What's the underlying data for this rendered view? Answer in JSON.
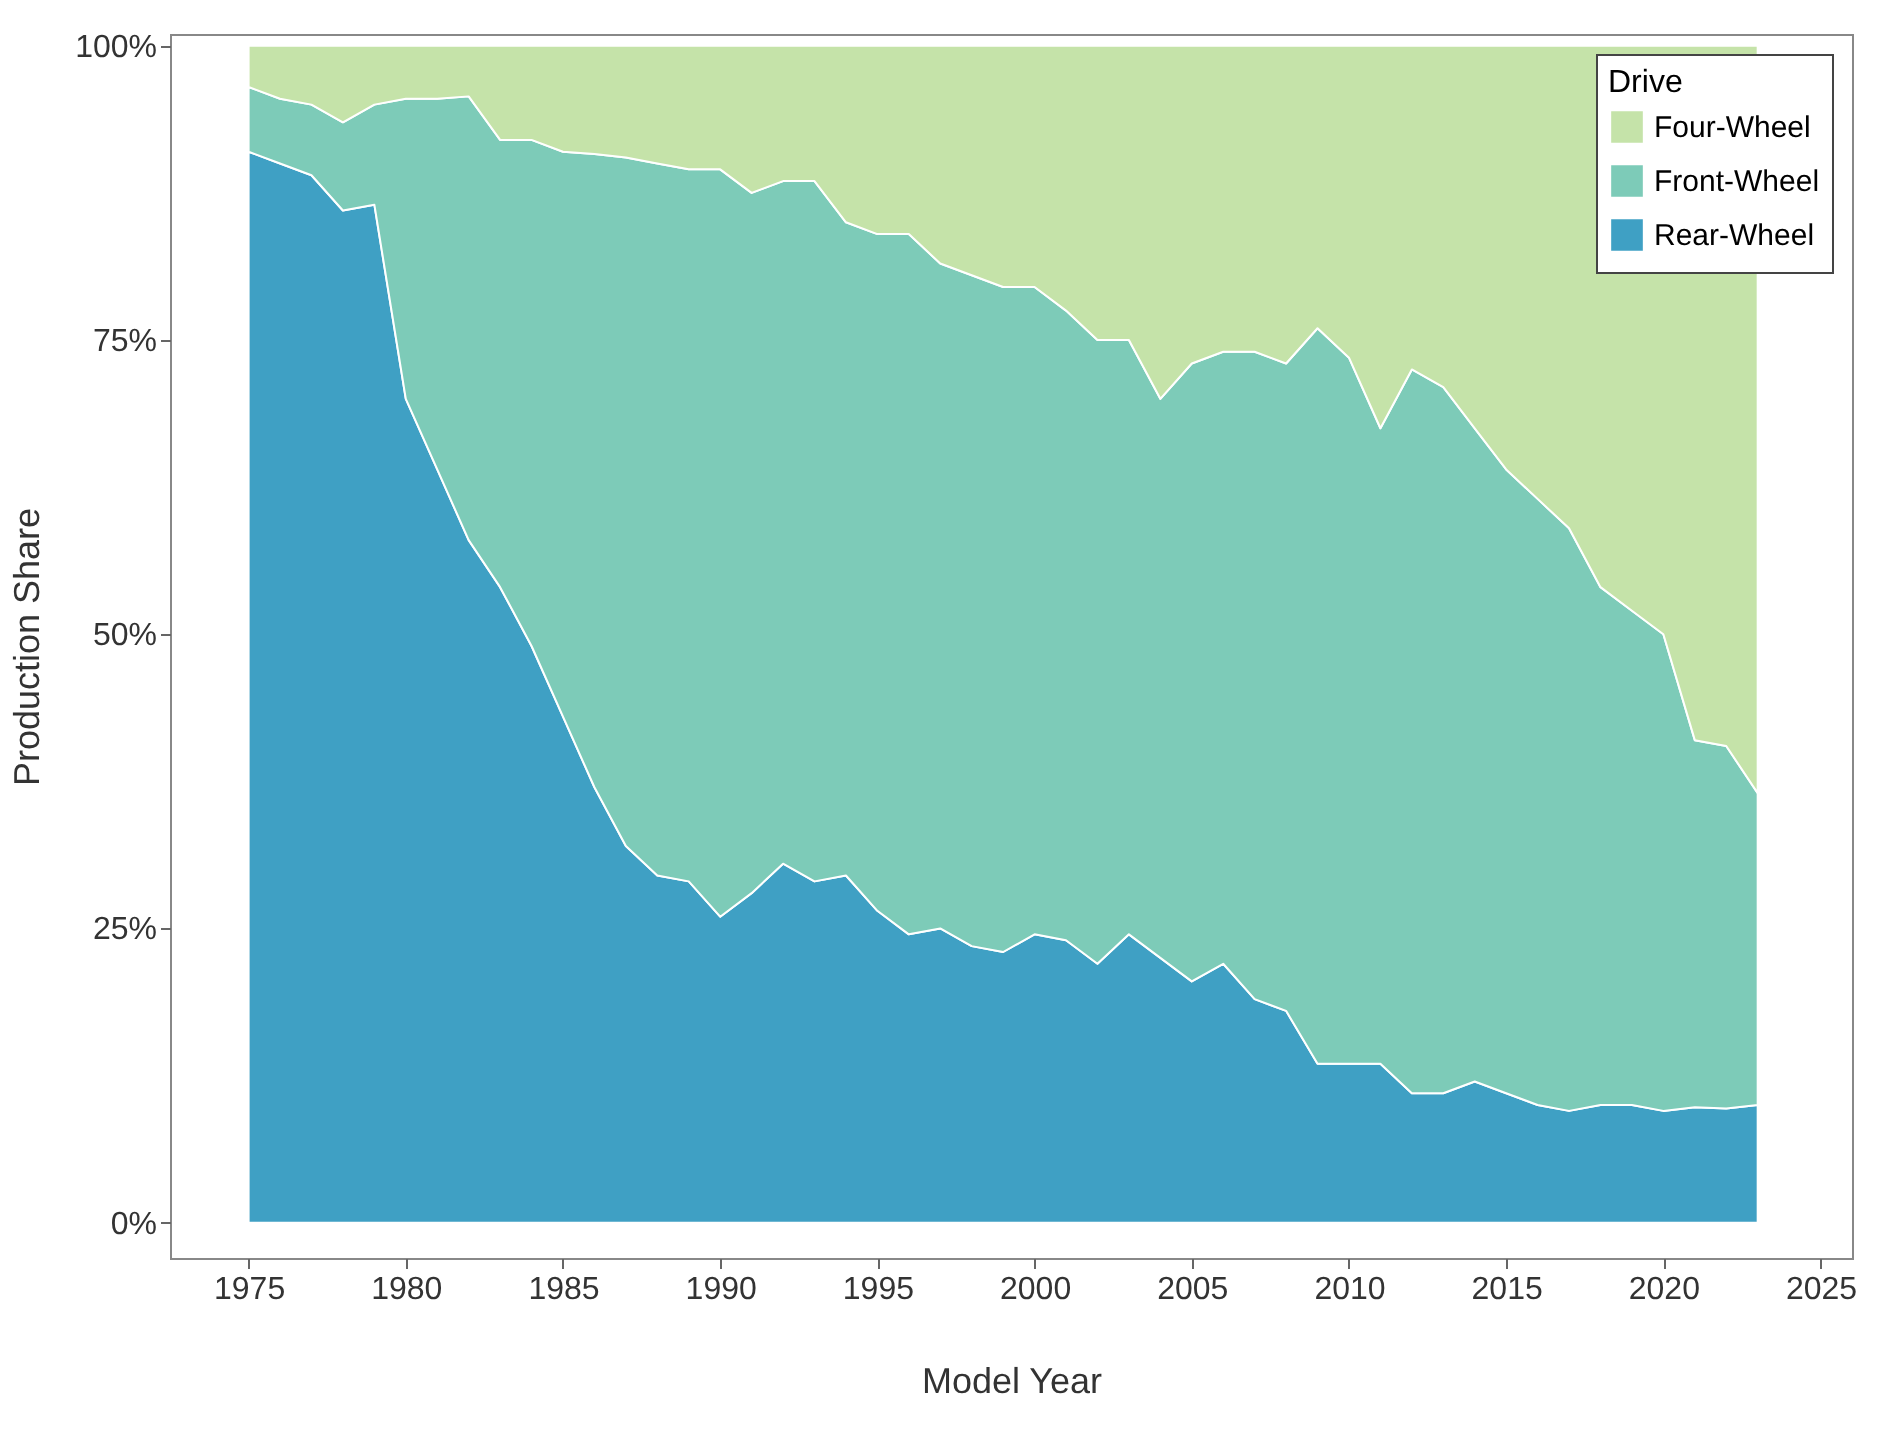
{
  "chart_data": {
    "type": "area",
    "stacked": true,
    "xlabel": "Model Year",
    "ylabel": "Production Share",
    "legend_title": "Drive",
    "legend": "top right",
    "grid": false,
    "x": [
      1975,
      1976,
      1977,
      1978,
      1979,
      1980,
      1981,
      1982,
      1983,
      1984,
      1985,
      1986,
      1987,
      1988,
      1989,
      1990,
      1991,
      1992,
      1993,
      1994,
      1995,
      1996,
      1997,
      1998,
      1999,
      2000,
      2001,
      2002,
      2003,
      2004,
      2005,
      2006,
      2007,
      2008,
      2009,
      2010,
      2011,
      2012,
      2013,
      2014,
      2015,
      2016,
      2017,
      2018,
      2019,
      2020,
      2021,
      2022,
      2023
    ],
    "xlim": [
      1972.5,
      2026
    ],
    "xticks": [
      1975,
      1980,
      1985,
      1990,
      1995,
      2000,
      2005,
      2010,
      2015,
      2020,
      2025
    ],
    "ylim": [
      -3,
      101
    ],
    "yticks": [
      {
        "value": 0,
        "label": "0%"
      },
      {
        "value": 25,
        "label": "25%"
      },
      {
        "value": 50,
        "label": "50%"
      },
      {
        "value": 75,
        "label": "75%"
      },
      {
        "value": 100,
        "label": "100%"
      }
    ],
    "series": [
      {
        "name": "Rear-Wheel",
        "color": "#3fa0c4",
        "values": [
          91,
          90,
          89,
          86,
          86.5,
          70,
          64,
          58,
          54,
          49,
          43,
          37,
          32,
          29.5,
          29,
          26,
          28,
          30.5,
          29,
          29.5,
          26.5,
          24.5,
          25,
          23.5,
          23,
          24.5,
          24,
          22,
          24.5,
          22.5,
          20.5,
          22,
          19,
          18,
          13.5,
          13.5,
          13.5,
          11,
          11,
          12,
          11,
          10,
          9.5,
          10,
          10,
          9.5,
          9.8,
          9.7,
          10
        ]
      },
      {
        "name": "Front-Wheel",
        "color": "#7dcbb8",
        "values": [
          5.5,
          5.5,
          6,
          7.5,
          8.5,
          25.5,
          31.5,
          37.7,
          38,
          43,
          48,
          53.8,
          58.5,
          60.5,
          60.5,
          63.5,
          59.5,
          58,
          59.5,
          55.5,
          57.5,
          59.5,
          56.5,
          57,
          56.5,
          55,
          53.5,
          53,
          50.5,
          47.5,
          52.5,
          52,
          55,
          55,
          62.5,
          60,
          54,
          61.5,
          60,
          55.5,
          53,
          51.5,
          49.5,
          44,
          42,
          40.5,
          31.2,
          30.8,
          26.5
        ]
      },
      {
        "name": "Four-Wheel",
        "color": "#c5e3a9",
        "values": [
          3.5,
          4.5,
          5,
          6.5,
          5,
          4.5,
          4.5,
          4.3,
          8,
          8,
          9,
          9.2,
          9.5,
          10,
          10.5,
          10.5,
          12.5,
          11.5,
          11.5,
          15,
          16,
          16,
          18.5,
          19.5,
          20.5,
          20.5,
          22.5,
          25,
          25,
          30,
          27,
          26,
          26,
          27,
          24,
          26.5,
          32.5,
          27.5,
          29,
          32.5,
          36,
          38.5,
          41,
          46,
          48,
          50,
          59,
          59.5,
          63.5
        ]
      }
    ]
  }
}
